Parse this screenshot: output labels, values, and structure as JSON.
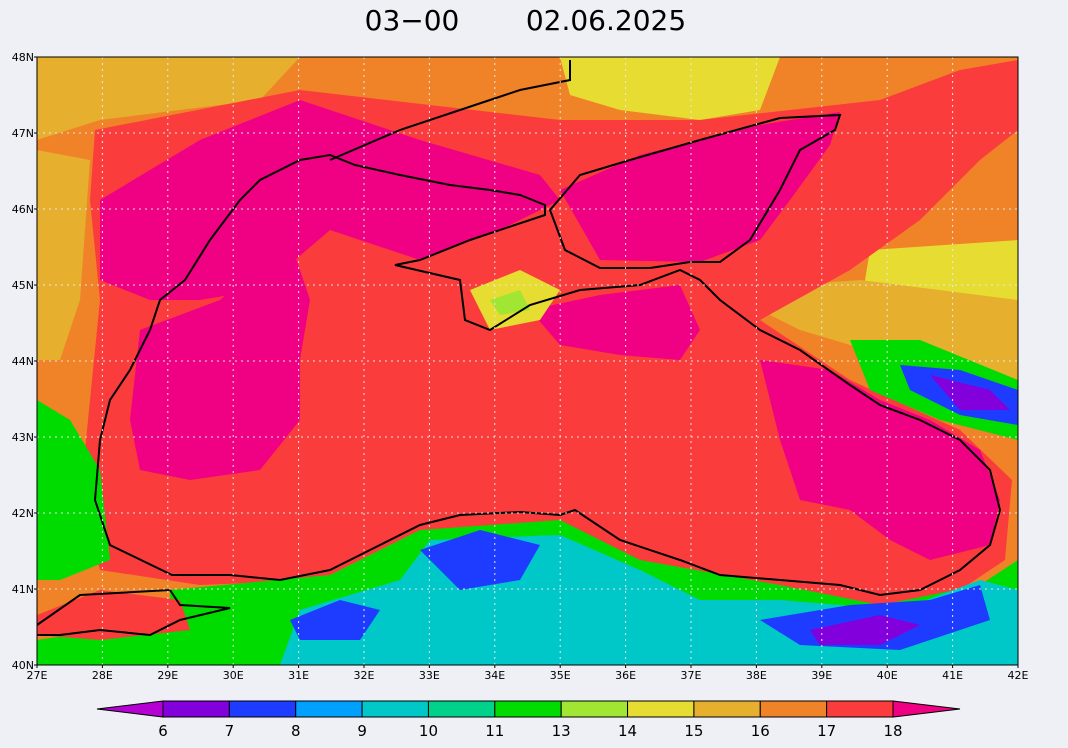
{
  "map": {
    "title_time": "03−00",
    "title_date": "02.06.2025",
    "lat_labels": [
      "48N",
      "47N",
      "46N",
      "45N",
      "44N",
      "43N",
      "42N",
      "41N",
      "40N"
    ],
    "lon_labels": [
      "27E",
      "28E",
      "29E",
      "30E",
      "31E",
      "32E",
      "33E",
      "34E",
      "35E",
      "36E",
      "37E",
      "38E",
      "39E",
      "40E",
      "41E",
      "42E"
    ]
  },
  "colorbar": {
    "levels": [
      6,
      7,
      8,
      9,
      10,
      11,
      13,
      14,
      15,
      16,
      17,
      18
    ],
    "colors": [
      "#b400d2",
      "#8200dc",
      "#1e3cff",
      "#00a0ff",
      "#00c8c8",
      "#00d28c",
      "#00dc00",
      "#a0e632",
      "#e6dc32",
      "#e6af2d",
      "#f08228",
      "#fa3c3c",
      "#f00082"
    ]
  }
}
